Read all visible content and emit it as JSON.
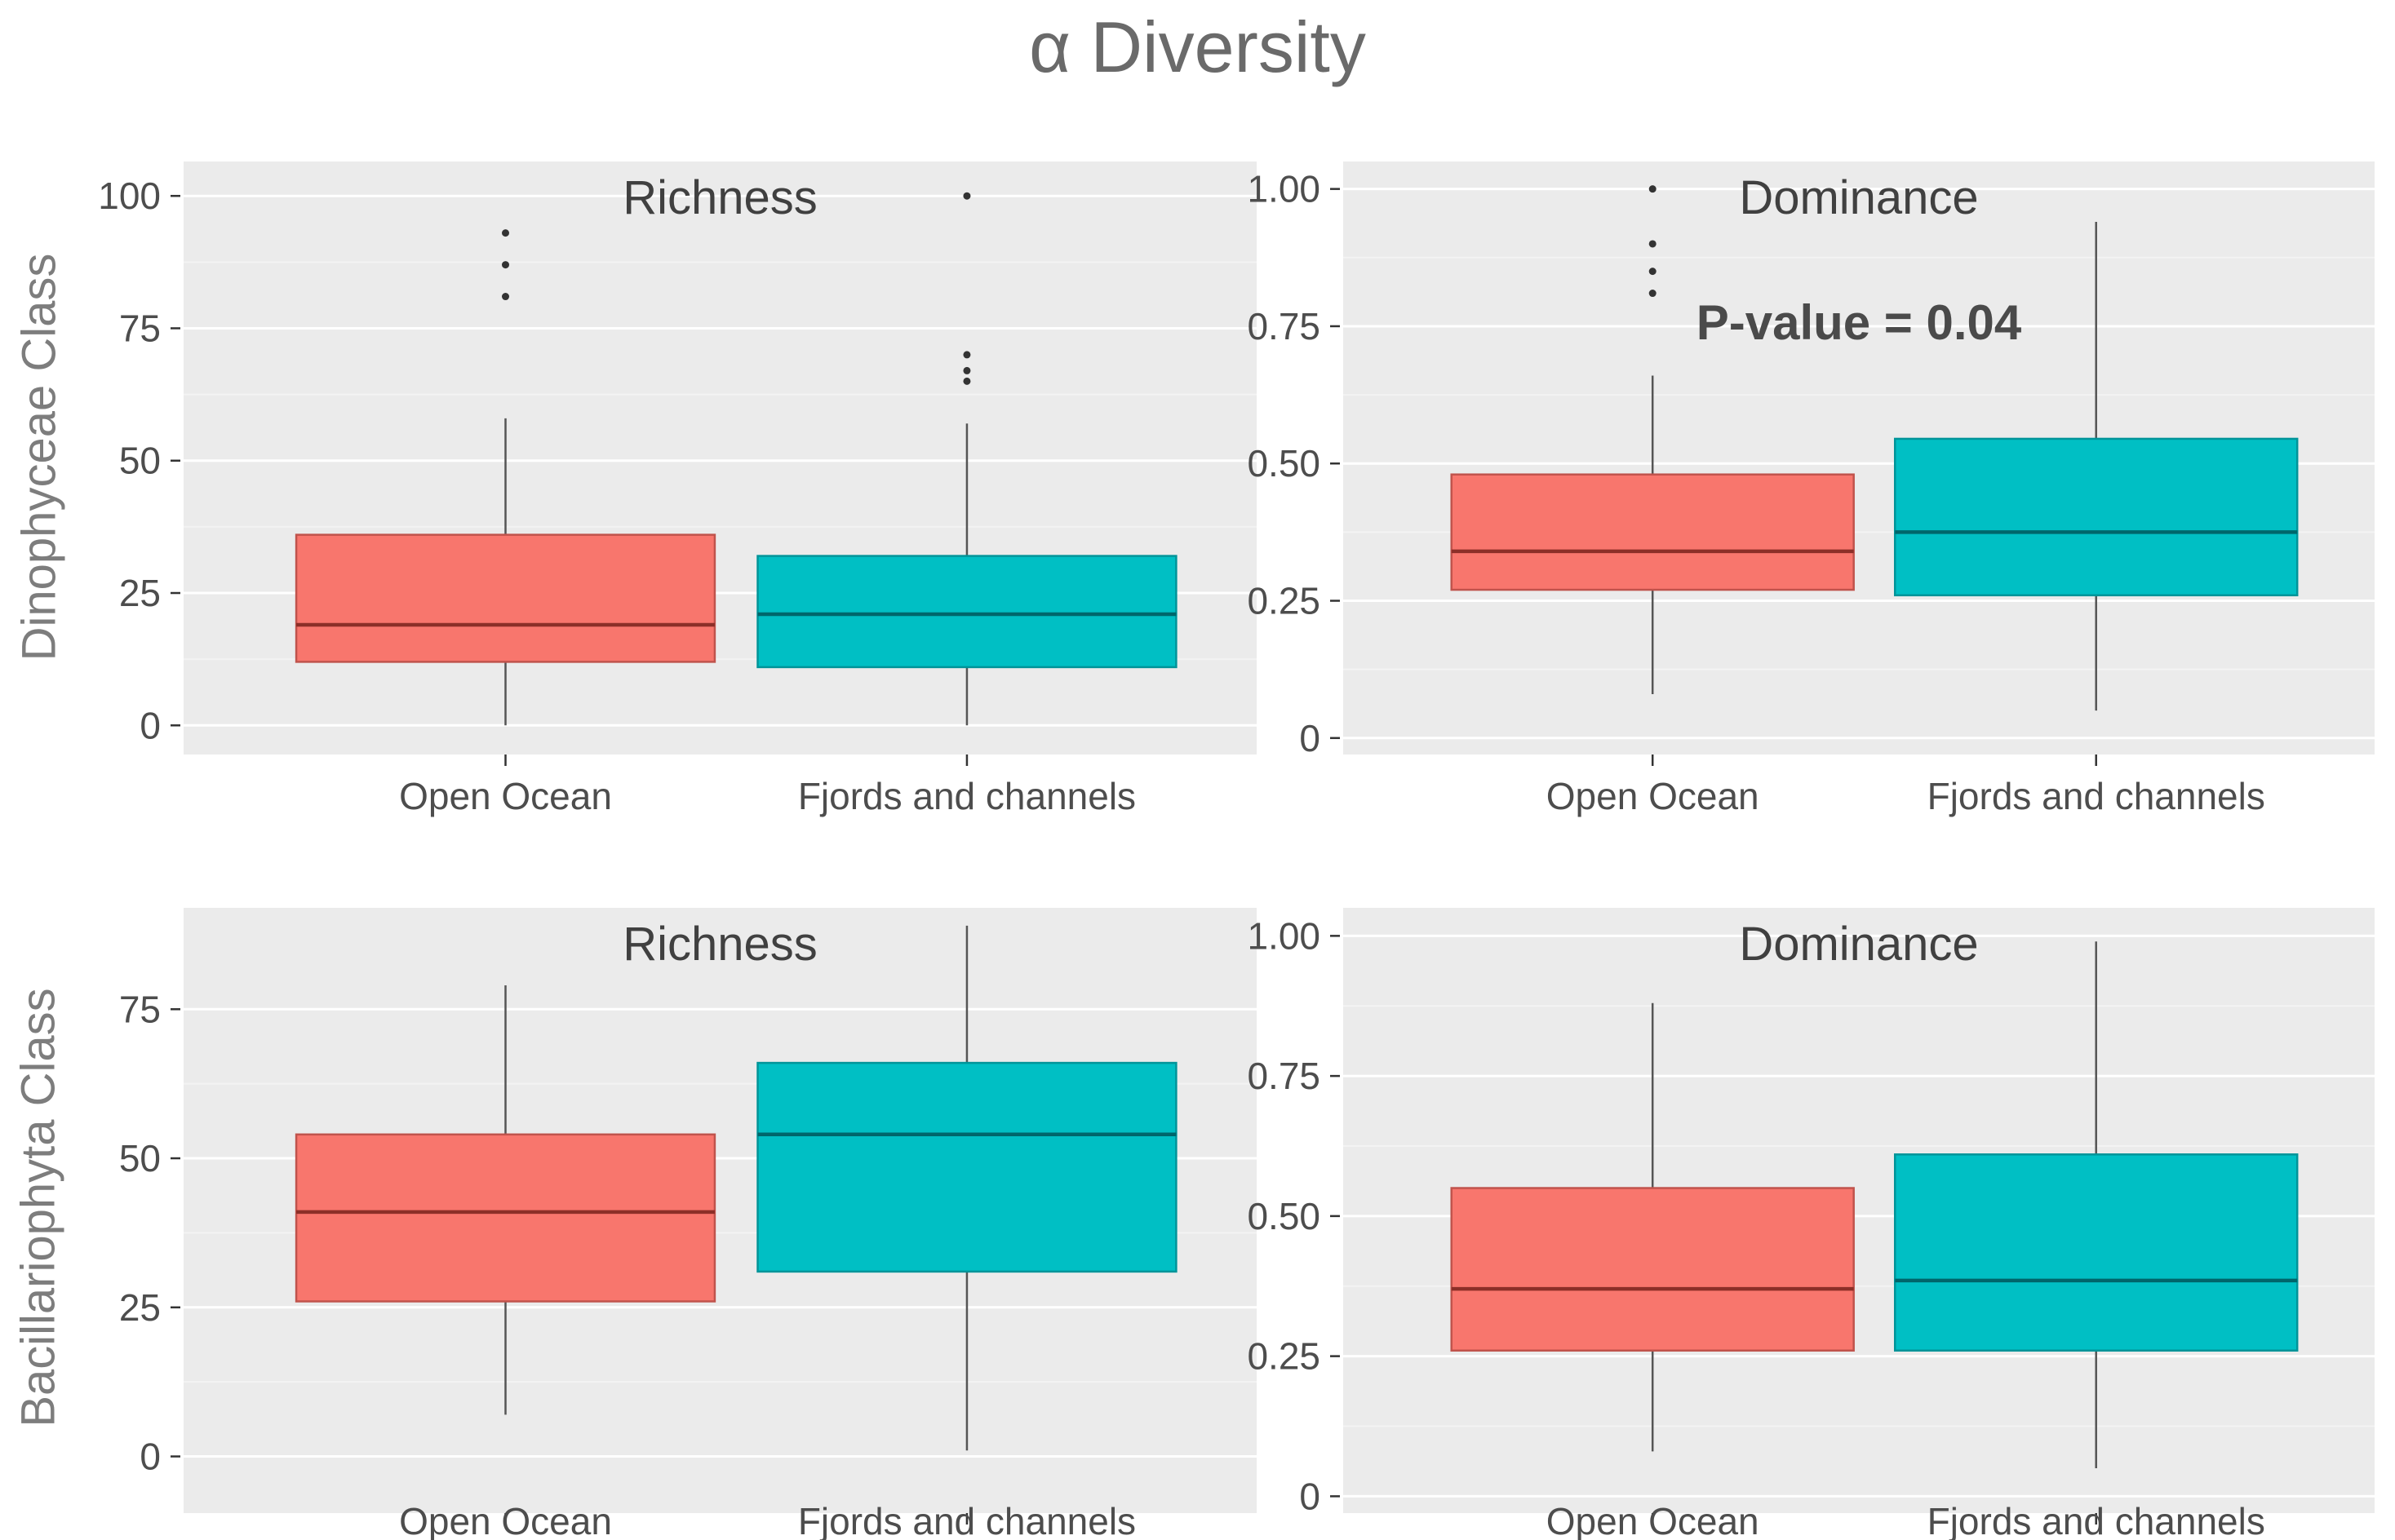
{
  "figure": {
    "title": "α Diversity"
  },
  "rows": [
    {
      "label": "Dinophyceae Class"
    },
    {
      "label": "Bacillariophyta Class"
    }
  ],
  "palette": {
    "open_ocean_fill": "#F8766D",
    "open_ocean_stroke": "#C0534C",
    "open_ocean_median": "#8C2F28",
    "fjords_fill": "#00BFC4",
    "fjords_stroke": "#009499",
    "fjords_median": "#00666B",
    "panel_bg": "#EBEBEB",
    "grid_major": "#FFFFFF",
    "grid_minor": "#F3F3F3",
    "tick_text": "#4D4D4D",
    "axis_tick": "#333333",
    "panel_title_text": "#404040",
    "annotation_text": "#4A4A4A",
    "whisker": "#555555",
    "outlier": "#333333"
  },
  "chart_data": [
    {
      "type": "box",
      "panel": "dinophyceae-richness",
      "title": "Richness",
      "annotation": null,
      "categories": [
        "Open Ocean",
        "Fjords and channels"
      ],
      "ylim": [
        -5.5,
        106.5
      ],
      "y_ticks": [
        {
          "v": 0,
          "label": "0"
        },
        {
          "v": 25,
          "label": "25"
        },
        {
          "v": 50,
          "label": "50"
        },
        {
          "v": 75,
          "label": "75"
        },
        {
          "v": 100,
          "label": "100"
        }
      ],
      "series": [
        {
          "name": "Open Ocean",
          "color_key": "open_ocean",
          "whisker_low": 0,
          "q1": 12,
          "median": 19,
          "q3": 36,
          "whisker_high": 58,
          "outliers": [
            81,
            87,
            93
          ]
        },
        {
          "name": "Fjords and channels",
          "color_key": "fjords",
          "whisker_low": 0,
          "q1": 11,
          "median": 21,
          "q3": 32,
          "whisker_high": 57,
          "outliers": [
            65,
            67,
            70,
            100
          ]
        }
      ]
    },
    {
      "type": "box",
      "panel": "dinophyceae-dominance",
      "title": "Dominance",
      "annotation": "P-value = 0.04",
      "categories": [
        "Open Ocean",
        "Fjords and channels"
      ],
      "ylim": [
        -0.03,
        1.05
      ],
      "y_ticks": [
        {
          "v": 0,
          "label": "0"
        },
        {
          "v": 0.25,
          "label": "0.25"
        },
        {
          "v": 0.5,
          "label": "0.50"
        },
        {
          "v": 0.75,
          "label": "0.75"
        },
        {
          "v": 1.0,
          "label": "1.00"
        }
      ],
      "series": [
        {
          "name": "Open Ocean",
          "color_key": "open_ocean",
          "whisker_low": 0.08,
          "q1": 0.27,
          "median": 0.34,
          "q3": 0.48,
          "whisker_high": 0.66,
          "outliers": [
            0.81,
            0.85,
            0.9,
            1.0
          ]
        },
        {
          "name": "Fjords and channels",
          "color_key": "fjords",
          "whisker_low": 0.05,
          "q1": 0.26,
          "median": 0.375,
          "q3": 0.545,
          "whisker_high": 0.94,
          "outliers": []
        }
      ]
    },
    {
      "type": "box",
      "panel": "bacillariophyta-richness",
      "title": "Richness",
      "annotation": null,
      "categories": [
        "Open Ocean",
        "Fjords and channels"
      ],
      "ylim": [
        -9.5,
        92
      ],
      "y_ticks": [
        {
          "v": 0,
          "label": "0"
        },
        {
          "v": 25,
          "label": "25"
        },
        {
          "v": 50,
          "label": "50"
        },
        {
          "v": 75,
          "label": "75"
        }
      ],
      "series": [
        {
          "name": "Open Ocean",
          "color_key": "open_ocean",
          "whisker_low": 7,
          "q1": 26,
          "median": 41,
          "q3": 54,
          "whisker_high": 79,
          "outliers": []
        },
        {
          "name": "Fjords and channels",
          "color_key": "fjords",
          "whisker_low": 1,
          "q1": 31,
          "median": 54,
          "q3": 66,
          "whisker_high": 89,
          "outliers": []
        }
      ]
    },
    {
      "type": "box",
      "panel": "bacillariophyta-dominance",
      "title": "Dominance",
      "annotation": null,
      "categories": [
        "Open Ocean",
        "Fjords and channels"
      ],
      "ylim": [
        -0.03,
        1.05
      ],
      "y_ticks": [
        {
          "v": 0,
          "label": "0"
        },
        {
          "v": 0.25,
          "label": "0.25"
        },
        {
          "v": 0.5,
          "label": "0.50"
        },
        {
          "v": 0.75,
          "label": "0.75"
        },
        {
          "v": 1.0,
          "label": "1.00"
        }
      ],
      "series": [
        {
          "name": "Open Ocean",
          "color_key": "open_ocean",
          "whisker_low": 0.08,
          "q1": 0.26,
          "median": 0.37,
          "q3": 0.55,
          "whisker_high": 0.88,
          "outliers": []
        },
        {
          "name": "Fjords and channels",
          "color_key": "fjords",
          "whisker_low": 0.05,
          "q1": 0.26,
          "median": 0.385,
          "q3": 0.61,
          "whisker_high": 0.99,
          "outliers": []
        }
      ]
    }
  ]
}
